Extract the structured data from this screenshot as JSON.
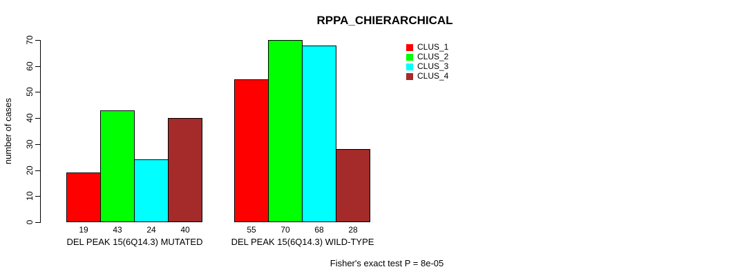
{
  "chart_data": {
    "type": "bar",
    "title": "RPPA_CHIERARCHICAL",
    "xlabel": "",
    "ylabel": "number of cases",
    "ylim": [
      0,
      70
    ],
    "yticks": [
      0,
      10,
      20,
      30,
      40,
      50,
      60,
      70
    ],
    "grid": false,
    "legend_position": "top-right",
    "categories": [
      "DEL PEAK 15(6Q14.3) MUTATED",
      "DEL PEAK 15(6Q14.3) WILD-TYPE"
    ],
    "series": [
      {
        "name": "CLUS_1",
        "color": "#ff0000",
        "values": [
          19,
          55
        ]
      },
      {
        "name": "CLUS_2",
        "color": "#00ff00",
        "values": [
          43,
          70
        ]
      },
      {
        "name": "CLUS_3",
        "color": "#00ffff",
        "values": [
          24,
          68
        ]
      },
      {
        "name": "CLUS_4",
        "color": "#a52a2a",
        "values": [
          40,
          28
        ]
      }
    ],
    "bar_value_labels": [
      [
        19,
        43,
        24,
        40
      ],
      [
        55,
        70,
        68,
        28
      ]
    ],
    "annotation": "Fisher's exact test P = 8e-05",
    "axis_color": "#000000",
    "bar_border_color": "#000000"
  }
}
